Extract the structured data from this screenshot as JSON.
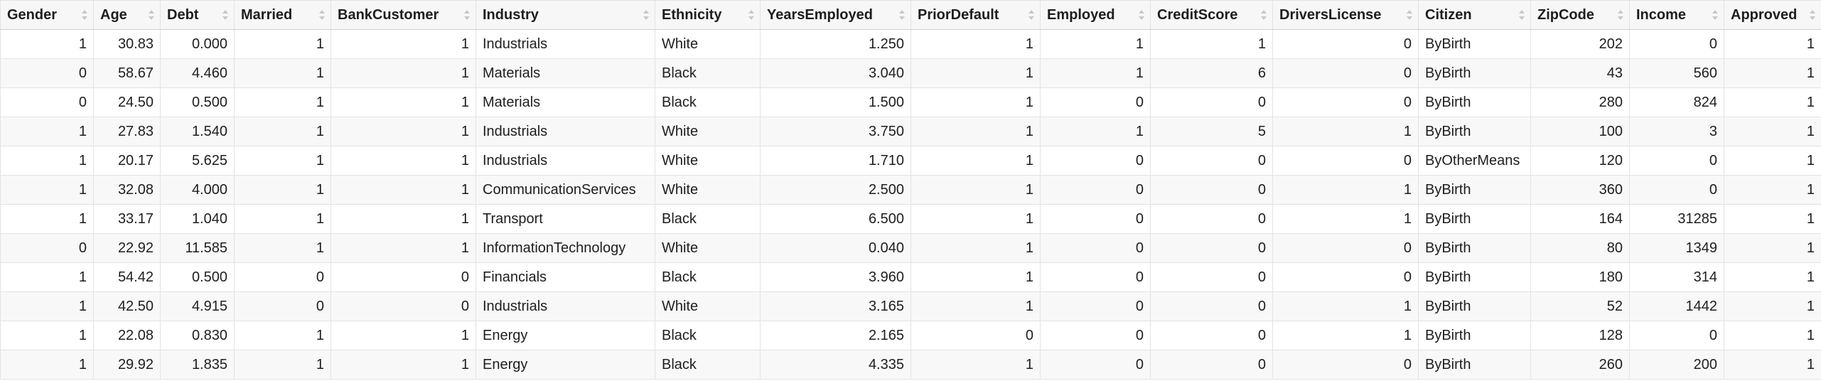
{
  "table": {
    "columns": [
      {
        "label": "Gender",
        "align": "num",
        "sortable": true
      },
      {
        "label": "Age",
        "align": "num",
        "sortable": true
      },
      {
        "label": "Debt",
        "align": "num",
        "sortable": true
      },
      {
        "label": "Married",
        "align": "num",
        "sortable": true
      },
      {
        "label": "BankCustomer",
        "align": "num",
        "sortable": true
      },
      {
        "label": "Industry",
        "align": "txt",
        "sortable": true
      },
      {
        "label": "Ethnicity",
        "align": "txt",
        "sortable": true
      },
      {
        "label": "YearsEmployed",
        "align": "num",
        "sortable": true
      },
      {
        "label": "PriorDefault",
        "align": "num",
        "sortable": true
      },
      {
        "label": "Employed",
        "align": "num",
        "sortable": true
      },
      {
        "label": "CreditScore",
        "align": "num",
        "sortable": true
      },
      {
        "label": "DriversLicense",
        "align": "num",
        "sortable": true
      },
      {
        "label": "Citizen",
        "align": "txt",
        "sortable": true
      },
      {
        "label": "ZipCode",
        "align": "num",
        "sortable": true
      },
      {
        "label": "Income",
        "align": "num",
        "sortable": true
      },
      {
        "label": "Approved",
        "align": "num",
        "sortable": true
      }
    ],
    "rows": [
      [
        "1",
        "30.83",
        "0.000",
        "1",
        "1",
        "Industrials",
        "White",
        "1.250",
        "1",
        "1",
        "1",
        "0",
        "ByBirth",
        "202",
        "0",
        "1"
      ],
      [
        "0",
        "58.67",
        "4.460",
        "1",
        "1",
        "Materials",
        "Black",
        "3.040",
        "1",
        "1",
        "6",
        "0",
        "ByBirth",
        "43",
        "560",
        "1"
      ],
      [
        "0",
        "24.50",
        "0.500",
        "1",
        "1",
        "Materials",
        "Black",
        "1.500",
        "1",
        "0",
        "0",
        "0",
        "ByBirth",
        "280",
        "824",
        "1"
      ],
      [
        "1",
        "27.83",
        "1.540",
        "1",
        "1",
        "Industrials",
        "White",
        "3.750",
        "1",
        "1",
        "5",
        "1",
        "ByBirth",
        "100",
        "3",
        "1"
      ],
      [
        "1",
        "20.17",
        "5.625",
        "1",
        "1",
        "Industrials",
        "White",
        "1.710",
        "1",
        "0",
        "0",
        "0",
        "ByOtherMeans",
        "120",
        "0",
        "1"
      ],
      [
        "1",
        "32.08",
        "4.000",
        "1",
        "1",
        "CommunicationServices",
        "White",
        "2.500",
        "1",
        "0",
        "0",
        "1",
        "ByBirth",
        "360",
        "0",
        "1"
      ],
      [
        "1",
        "33.17",
        "1.040",
        "1",
        "1",
        "Transport",
        "Black",
        "6.500",
        "1",
        "0",
        "0",
        "1",
        "ByBirth",
        "164",
        "31285",
        "1"
      ],
      [
        "0",
        "22.92",
        "11.585",
        "1",
        "1",
        "InformationTechnology",
        "White",
        "0.040",
        "1",
        "0",
        "0",
        "0",
        "ByBirth",
        "80",
        "1349",
        "1"
      ],
      [
        "1",
        "54.42",
        "0.500",
        "0",
        "0",
        "Financials",
        "Black",
        "3.960",
        "1",
        "0",
        "0",
        "0",
        "ByBirth",
        "180",
        "314",
        "1"
      ],
      [
        "1",
        "42.50",
        "4.915",
        "0",
        "0",
        "Industrials",
        "White",
        "3.165",
        "1",
        "0",
        "0",
        "1",
        "ByBirth",
        "52",
        "1442",
        "1"
      ],
      [
        "1",
        "22.08",
        "0.830",
        "1",
        "1",
        "Energy",
        "Black",
        "2.165",
        "0",
        "0",
        "0",
        "1",
        "ByBirth",
        "128",
        "0",
        "1"
      ],
      [
        "1",
        "29.92",
        "1.835",
        "1",
        "1",
        "Energy",
        "Black",
        "4.335",
        "1",
        "0",
        "0",
        "0",
        "ByBirth",
        "260",
        "200",
        "1"
      ]
    ]
  },
  "icons": {
    "sort": "sort-updown-icon"
  },
  "colors": {
    "border": "#e3e3e3",
    "header_bg": "#f7f7f7",
    "row_alt_bg": "#f8f8f8",
    "sort_icon": "#c8c8c8"
  }
}
